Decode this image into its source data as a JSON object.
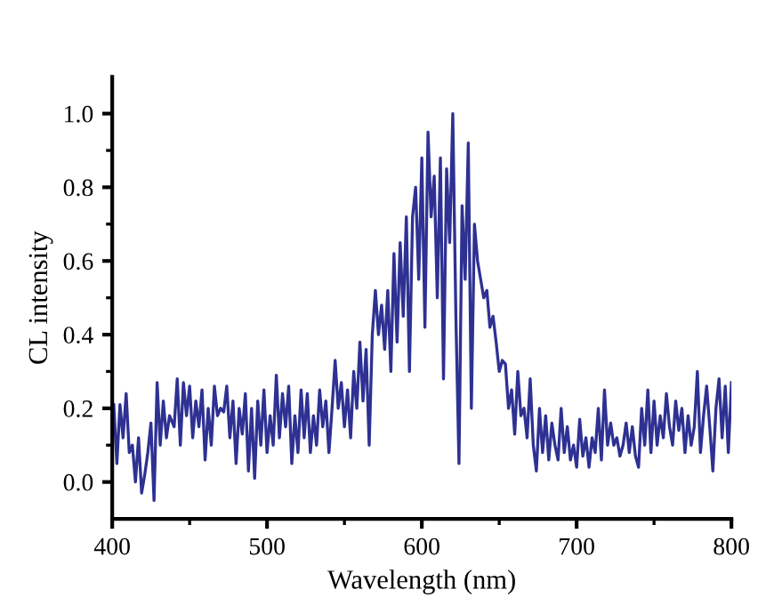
{
  "chart_data": {
    "type": "line",
    "xlabel": "Wavelength (nm)",
    "ylabel": "CL intensity",
    "xlim": [
      400,
      800
    ],
    "xticks": [
      400,
      500,
      600,
      700,
      800
    ],
    "ylim": [
      -0.1,
      1.1
    ],
    "yticks": [
      {
        "value": 0,
        "label": "0.0"
      },
      0.2,
      0.4,
      0.6,
      0.8,
      {
        "value": 1,
        "label": "1.0"
      }
    ],
    "grid": false,
    "legend": false,
    "marker": "none",
    "line_style": "solid",
    "series": [
      {
        "color": "#2e3192",
        "x": [
          401,
          403,
          405,
          407,
          409,
          411,
          413,
          415,
          417,
          419,
          421,
          423,
          425,
          427,
          429,
          431,
          433,
          435,
          437,
          440,
          442,
          444,
          446,
          448,
          450,
          452,
          454,
          456,
          458,
          460,
          462,
          464,
          466,
          468,
          470,
          472,
          474,
          476,
          478,
          480,
          482,
          484,
          486,
          488,
          490,
          492,
          494,
          496,
          498,
          500,
          502,
          504,
          506,
          508,
          510,
          512,
          514,
          516,
          518,
          520,
          522,
          524,
          526,
          528,
          530,
          532,
          534,
          536,
          538,
          540,
          542,
          544,
          546,
          548,
          550,
          552,
          554,
          556,
          558,
          560,
          562,
          564,
          566,
          568,
          570,
          572,
          574,
          576,
          578,
          580,
          582,
          584,
          586,
          588,
          590,
          592,
          594,
          596,
          598,
          600,
          602,
          604,
          606,
          608,
          610,
          612,
          614,
          616,
          618,
          620,
          622,
          624,
          626,
          628,
          630,
          632,
          634,
          636,
          638,
          640,
          642,
          644,
          646,
          648,
          650,
          652,
          654,
          656,
          658,
          660,
          662,
          664,
          666,
          668,
          670,
          672,
          674,
          676,
          678,
          680,
          682,
          684,
          686,
          688,
          690,
          692,
          694,
          696,
          698,
          700,
          702,
          704,
          706,
          708,
          710,
          712,
          714,
          716,
          718,
          720,
          722,
          724,
          726,
          728,
          730,
          732,
          734,
          736,
          738,
          740,
          742,
          744,
          746,
          748,
          750,
          752,
          754,
          756,
          758,
          760,
          762,
          764,
          766,
          768,
          770,
          772,
          774,
          776,
          778,
          780,
          782,
          784,
          786,
          788,
          790,
          792,
          794,
          796,
          798,
          800
        ],
        "values": [
          0.21,
          0.05,
          0.21,
          0.12,
          0.24,
          0.08,
          0.1,
          0.0,
          0.12,
          -0.03,
          0.02,
          0.08,
          0.16,
          -0.05,
          0.27,
          0.1,
          0.22,
          0.12,
          0.18,
          0.15,
          0.28,
          0.1,
          0.27,
          0.18,
          0.26,
          0.12,
          0.22,
          0.15,
          0.25,
          0.06,
          0.2,
          0.1,
          0.26,
          0.18,
          0.2,
          0.19,
          0.26,
          0.12,
          0.22,
          0.05,
          0.2,
          0.13,
          0.24,
          0.03,
          0.2,
          0.01,
          0.22,
          0.1,
          0.25,
          0.08,
          0.18,
          0.1,
          0.29,
          0.12,
          0.24,
          0.15,
          0.26,
          0.05,
          0.18,
          0.08,
          0.25,
          0.12,
          0.24,
          0.08,
          0.18,
          0.1,
          0.25,
          0.15,
          0.22,
          0.08,
          0.2,
          0.33,
          0.2,
          0.27,
          0.15,
          0.25,
          0.12,
          0.3,
          0.2,
          0.38,
          0.22,
          0.36,
          0.1,
          0.4,
          0.52,
          0.4,
          0.48,
          0.36,
          0.52,
          0.3,
          0.62,
          0.38,
          0.65,
          0.45,
          0.72,
          0.3,
          0.72,
          0.8,
          0.55,
          0.88,
          0.42,
          0.95,
          0.72,
          0.83,
          0.5,
          0.88,
          0.28,
          0.85,
          0.65,
          1.0,
          0.45,
          0.05,
          0.75,
          0.55,
          0.92,
          0.2,
          0.7,
          0.6,
          0.55,
          0.5,
          0.52,
          0.42,
          0.45,
          0.38,
          0.3,
          0.33,
          0.32,
          0.2,
          0.25,
          0.13,
          0.3,
          0.18,
          0.2,
          0.12,
          0.28,
          0.1,
          0.03,
          0.2,
          0.08,
          0.18,
          0.06,
          0.16,
          0.1,
          0.06,
          0.2,
          0.08,
          0.15,
          0.06,
          0.1,
          0.04,
          0.17,
          0.07,
          0.12,
          0.04,
          0.12,
          0.08,
          0.2,
          0.06,
          0.25,
          0.1,
          0.16,
          0.1,
          0.12,
          0.07,
          0.1,
          0.16,
          0.08,
          0.15,
          0.07,
          0.04,
          0.2,
          0.1,
          0.25,
          0.08,
          0.22,
          0.1,
          0.18,
          0.12,
          0.24,
          0.15,
          0.1,
          0.22,
          0.14,
          0.2,
          0.08,
          0.18,
          0.1,
          0.15,
          0.3,
          0.08,
          0.18,
          0.26,
          0.15,
          0.03,
          0.2,
          0.28,
          0.12,
          0.26,
          0.08,
          0.27
        ]
      }
    ]
  }
}
